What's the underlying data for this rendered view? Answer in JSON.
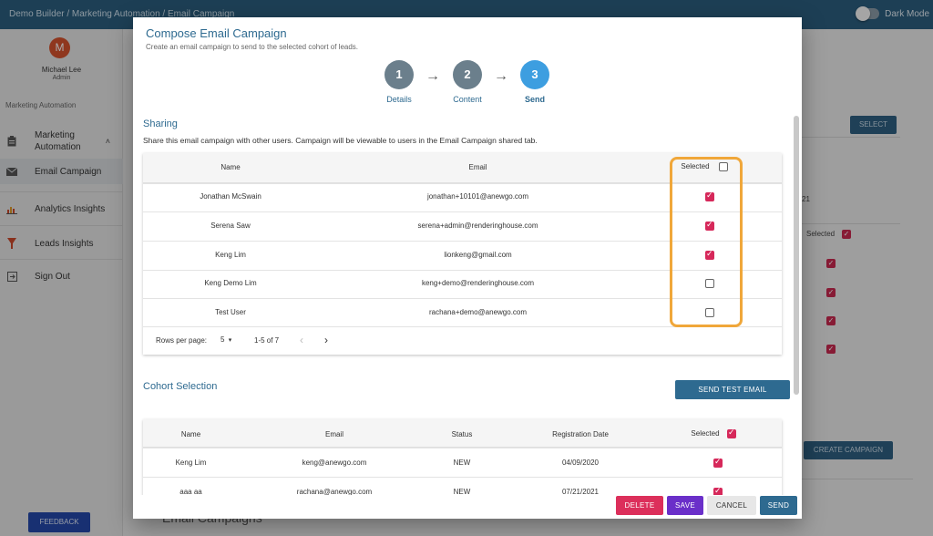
{
  "topbar": {
    "breadcrumb": "Demo Builder  /  Marketing Automation / Email Campaign",
    "dark_mode_label": "Dark Mode"
  },
  "sidebar": {
    "avatar_letter": "M",
    "user_name": "Michael Lee",
    "user_role": "Admin",
    "section_label": "Marketing Automation",
    "items": [
      {
        "label": "Marketing Automation",
        "icon": "clipboard-icon"
      },
      {
        "label": "Email Campaign",
        "icon": "mail-icon"
      },
      {
        "label": "Analytics Insights",
        "icon": "chart-icon"
      },
      {
        "label": "Leads Insights",
        "icon": "funnel-icon"
      },
      {
        "label": "Sign Out",
        "icon": "sign-out-icon"
      }
    ],
    "feedback_label": "FEEDBACK"
  },
  "background": {
    "select_label": "SELECT",
    "partial_value": "21",
    "selected_label": "Selected",
    "create_campaign_label": "CREATE CAMPAIGN",
    "footer_heading": "Email Campaigns"
  },
  "modal": {
    "title": "Compose Email Campaign",
    "subtitle": "Create an email campaign to send to the selected cohort of leads.",
    "steps": [
      {
        "num": "1",
        "label": "Details"
      },
      {
        "num": "2",
        "label": "Content"
      },
      {
        "num": "3",
        "label": "Send"
      }
    ],
    "sharing": {
      "heading": "Sharing",
      "description": "Share this email campaign with other users. Campaign will be viewable to users in the Email Campaign shared tab.",
      "columns": [
        "Name",
        "Email",
        "Selected"
      ],
      "rows": [
        {
          "name": "Jonathan McSwain",
          "email": "jonathan+10101@anewgo.com",
          "selected": true
        },
        {
          "name": "Serena Saw",
          "email": "serena+admin@renderinghouse.com",
          "selected": true
        },
        {
          "name": "Keng Lim",
          "email": "lionkeng@gmail.com",
          "selected": true
        },
        {
          "name": "Keng Demo Lim",
          "email": "keng+demo@renderinghouse.com",
          "selected": false
        },
        {
          "name": "Test User",
          "email": "rachana+demo@anewgo.com",
          "selected": false
        }
      ],
      "rows_per_page_label": "Rows per page:",
      "rows_per_page": "5",
      "range": "1-5 of 7"
    },
    "cohort": {
      "heading": "Cohort Selection",
      "send_test_label": "SEND TEST EMAIL",
      "columns": [
        "Name",
        "Email",
        "Status",
        "Registration Date",
        "Selected"
      ],
      "rows": [
        {
          "name": "Keng Lim",
          "email": "keng@anewgo.com",
          "status": "NEW",
          "date": "04/09/2020"
        },
        {
          "name": "aaa aa",
          "email": "rachana@anewgo.com",
          "status": "NEW",
          "date": "07/21/2021"
        }
      ]
    },
    "footer": {
      "delete": "DELETE",
      "save": "SAVE",
      "cancel": "CANCEL",
      "send": "SEND"
    }
  },
  "colors": {
    "topbar": "#2b5d7e",
    "primary_text": "#2e6a90",
    "step_current": "#3d9ee0",
    "checkbox_on": "#d6285a",
    "highlight": "#f0a73a",
    "delete": "#dc2f5b",
    "save": "#6a2fc9",
    "send": "#2e6a90"
  }
}
